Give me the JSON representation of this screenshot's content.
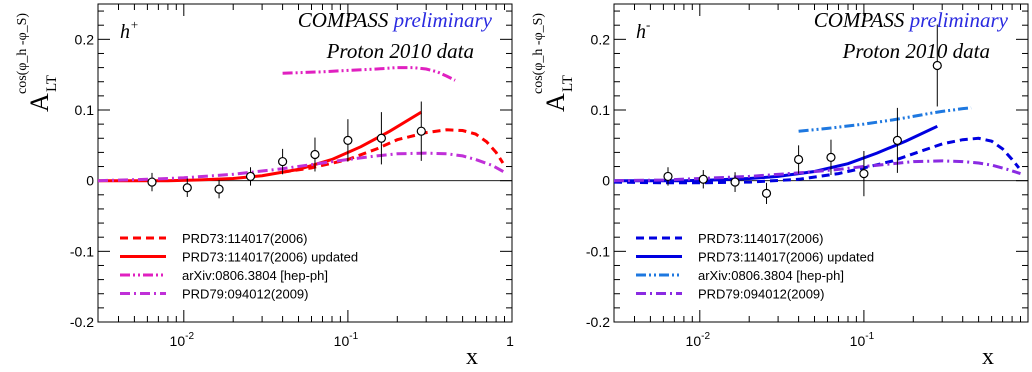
{
  "chart_data": [
    {
      "type": "line",
      "panel": "h+",
      "tag": "h",
      "tag_sup": "+",
      "header_prefix": "COMPASS",
      "header_suffix": "preliminary",
      "header_line2": "Proton 2010 data",
      "ylabel_main": "A",
      "ylabel_sub": "LT",
      "ylabel_sup": "cos(φ_h -φ_S)",
      "xlabel": "x",
      "xscale": "log",
      "xlim": [
        0.003,
        1.0
      ],
      "ylim": [
        -0.2,
        0.25
      ],
      "grid": false,
      "legend_position": "bottom-left",
      "xticks": [
        {
          "v": 0.01,
          "base": "10",
          "exp": "-2"
        },
        {
          "v": 0.1,
          "base": "10",
          "exp": "-1"
        },
        {
          "v": 1,
          "base": "1",
          "exp": ""
        }
      ],
      "yticks": [
        {
          "v": -0.2,
          "label": "-0.2"
        },
        {
          "v": -0.1,
          "label": "-0.1"
        },
        {
          "v": 0,
          "label": "0"
        },
        {
          "v": 0.1,
          "label": "0.1"
        },
        {
          "v": 0.2,
          "label": "0.2"
        }
      ],
      "points": {
        "x": [
          0.0064,
          0.0105,
          0.0164,
          0.0255,
          0.04,
          0.063,
          0.1,
          0.16,
          0.28
        ],
        "y": [
          -0.002,
          -0.01,
          -0.012,
          0.006,
          0.027,
          0.037,
          0.057,
          0.06,
          0.07
        ],
        "err": [
          0.013,
          0.013,
          0.013,
          0.013,
          0.018,
          0.024,
          0.03,
          0.037,
          0.042
        ]
      },
      "series": [
        {
          "name": "PRD73:114017(2006)",
          "color": "#ff0000",
          "dash": "dashed",
          "x": [
            0.04,
            0.06,
            0.1,
            0.15,
            0.2,
            0.3,
            0.4,
            0.5,
            0.6,
            0.7,
            0.8,
            0.88
          ],
          "y": [
            0.012,
            0.018,
            0.03,
            0.045,
            0.058,
            0.068,
            0.072,
            0.071,
            0.066,
            0.055,
            0.04,
            0.025
          ]
        },
        {
          "name": "PRD73:114017(2006) updated",
          "color": "#ff0000",
          "dash": "solid",
          "x": [
            0.003,
            0.005,
            0.008,
            0.012,
            0.02,
            0.03,
            0.05,
            0.08,
            0.12,
            0.18,
            0.28
          ],
          "y": [
            0.0,
            0.0,
            0.0,
            0.001,
            0.003,
            0.007,
            0.016,
            0.03,
            0.048,
            0.07,
            0.097
          ]
        },
        {
          "name": "arXiv:0806.3804 [hep-ph]",
          "color": "#e020c0",
          "dash": "dashdotdot",
          "x": [
            0.04,
            0.07,
            0.1,
            0.15,
            0.2,
            0.25,
            0.3,
            0.35,
            0.4,
            0.45
          ],
          "y": [
            0.152,
            0.154,
            0.156,
            0.158,
            0.16,
            0.16,
            0.158,
            0.154,
            0.148,
            0.142
          ]
        },
        {
          "name": "PRD79:094012(2009)",
          "color": "#c030d8",
          "dash": "dashdot",
          "x": [
            0.003,
            0.006,
            0.01,
            0.02,
            0.04,
            0.07,
            0.1,
            0.15,
            0.2,
            0.3,
            0.4,
            0.5,
            0.6,
            0.75,
            0.9
          ],
          "y": [
            0.0,
            0.002,
            0.004,
            0.009,
            0.017,
            0.025,
            0.03,
            0.035,
            0.038,
            0.039,
            0.038,
            0.035,
            0.03,
            0.022,
            0.012
          ]
        }
      ]
    },
    {
      "type": "line",
      "panel": "h-",
      "tag": "h",
      "tag_sup": "-",
      "header_prefix": "COMPASS",
      "header_suffix": "preliminary",
      "header_line2": "Proton 2010 data",
      "ylabel_main": "A",
      "ylabel_sub": "LT",
      "ylabel_sup": "cos(φ_h -φ_S)",
      "xlabel": "x",
      "xscale": "log",
      "xlim": [
        0.003,
        1.0
      ],
      "ylim": [
        -0.2,
        0.25
      ],
      "grid": false,
      "legend_position": "bottom-left",
      "xticks": [
        {
          "v": 0.01,
          "base": "10",
          "exp": "-2"
        },
        {
          "v": 0.1,
          "base": "10",
          "exp": "-1"
        }
      ],
      "yticks": [
        {
          "v": -0.2,
          "label": "-0.2"
        },
        {
          "v": -0.1,
          "label": "-0.1"
        },
        {
          "v": 0,
          "label": "0"
        },
        {
          "v": 0.1,
          "label": "0.1"
        },
        {
          "v": 0.2,
          "label": "0.2"
        }
      ],
      "points": {
        "x": [
          0.0064,
          0.0105,
          0.0164,
          0.0255,
          0.04,
          0.063,
          0.1,
          0.16,
          0.28
        ],
        "y": [
          0.006,
          0.002,
          -0.002,
          -0.018,
          0.03,
          0.033,
          0.01,
          0.057,
          0.163
        ],
        "err": [
          0.013,
          0.013,
          0.014,
          0.015,
          0.02,
          0.025,
          0.032,
          0.046,
          0.058
        ]
      },
      "series": [
        {
          "name": "PRD73:114017(2006)",
          "color": "#0000e0",
          "dash": "dashed",
          "x": [
            0.003,
            0.006,
            0.01,
            0.02,
            0.04,
            0.07,
            0.1,
            0.15,
            0.2,
            0.3,
            0.4,
            0.5,
            0.6,
            0.7,
            0.8,
            0.88
          ],
          "y": [
            -0.002,
            -0.003,
            -0.003,
            -0.002,
            0.002,
            0.01,
            0.018,
            0.028,
            0.038,
            0.052,
            0.058,
            0.06,
            0.056,
            0.045,
            0.03,
            0.018
          ]
        },
        {
          "name": "PRD73:114017(2006) updated",
          "color": "#0000e0",
          "dash": "solid",
          "x": [
            0.003,
            0.005,
            0.008,
            0.012,
            0.02,
            0.03,
            0.05,
            0.08,
            0.12,
            0.18,
            0.28
          ],
          "y": [
            0.0,
            0.0,
            0.0,
            0.001,
            0.003,
            0.006,
            0.013,
            0.024,
            0.039,
            0.056,
            0.077
          ]
        },
        {
          "name": "arXiv:0806.3804 [hep-ph]",
          "color": "#1e78e0",
          "dash": "dashdotdot",
          "x": [
            0.04,
            0.06,
            0.1,
            0.15,
            0.2,
            0.25,
            0.3,
            0.35,
            0.4,
            0.45
          ],
          "y": [
            0.07,
            0.074,
            0.08,
            0.086,
            0.091,
            0.095,
            0.098,
            0.1,
            0.102,
            0.103
          ]
        },
        {
          "name": "PRD79:094012(2009)",
          "color": "#8a2be2",
          "dash": "dashdot",
          "x": [
            0.003,
            0.006,
            0.01,
            0.02,
            0.04,
            0.07,
            0.1,
            0.15,
            0.2,
            0.3,
            0.4,
            0.5,
            0.6,
            0.75,
            0.9
          ],
          "y": [
            0.0,
            0.001,
            0.003,
            0.006,
            0.011,
            0.016,
            0.02,
            0.024,
            0.027,
            0.028,
            0.027,
            0.025,
            0.022,
            0.016,
            0.01
          ]
        }
      ]
    }
  ]
}
